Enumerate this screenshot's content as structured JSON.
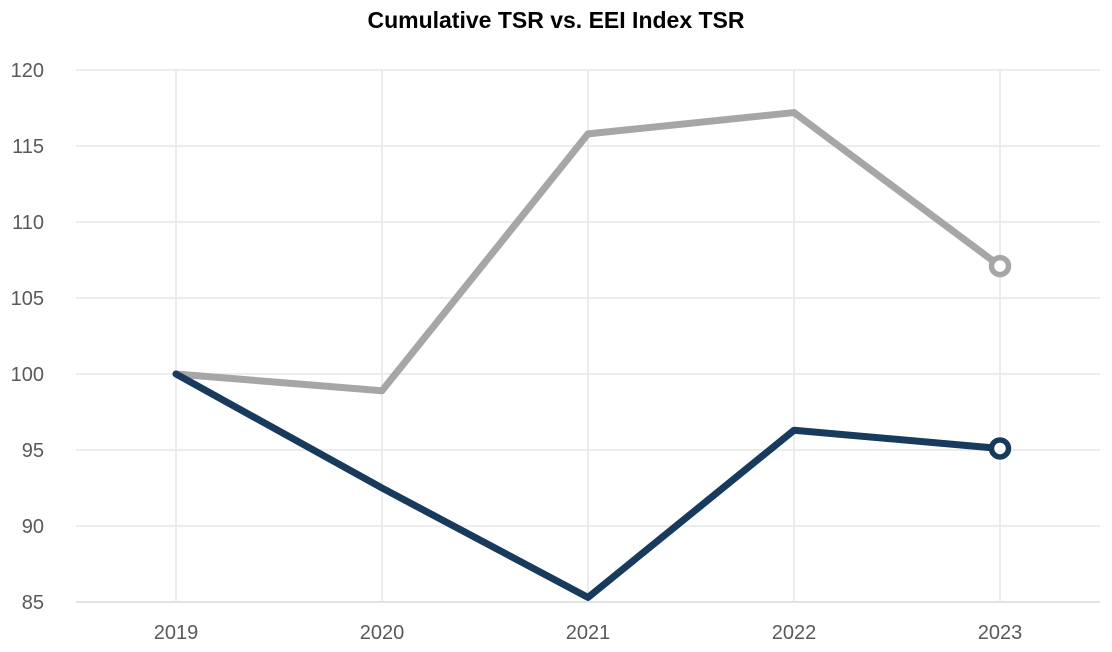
{
  "chart_data": {
    "type": "line",
    "title": "Cumulative TSR vs. EEI Index TSR",
    "categories": [
      "2019",
      "2020",
      "2021",
      "2022",
      "2023"
    ],
    "series": [
      {
        "name": "EEI Index TSR",
        "color": "#A6A6A6",
        "values": [
          100,
          98.9,
          115.8,
          117.2,
          107.1
        ],
        "end_marker": "open-circle"
      },
      {
        "name": "Cumulative TSR",
        "color": "#173A5D",
        "values": [
          100,
          92.5,
          85.3,
          96.3,
          95.1
        ],
        "end_marker": "open-circle"
      }
    ],
    "ylim": [
      85,
      120
    ],
    "y_ticks": [
      85,
      90,
      95,
      100,
      105,
      110,
      115,
      120
    ],
    "xlabel": "",
    "ylabel": "",
    "legend": "none",
    "grid": {
      "horizontal": true,
      "vertical": true
    },
    "colors": {
      "tick_label": "#595959",
      "gridline": "#E5E5E5",
      "axis_line": "#D9D9D9",
      "title": "#000000",
      "background": "#FFFFFF"
    }
  }
}
